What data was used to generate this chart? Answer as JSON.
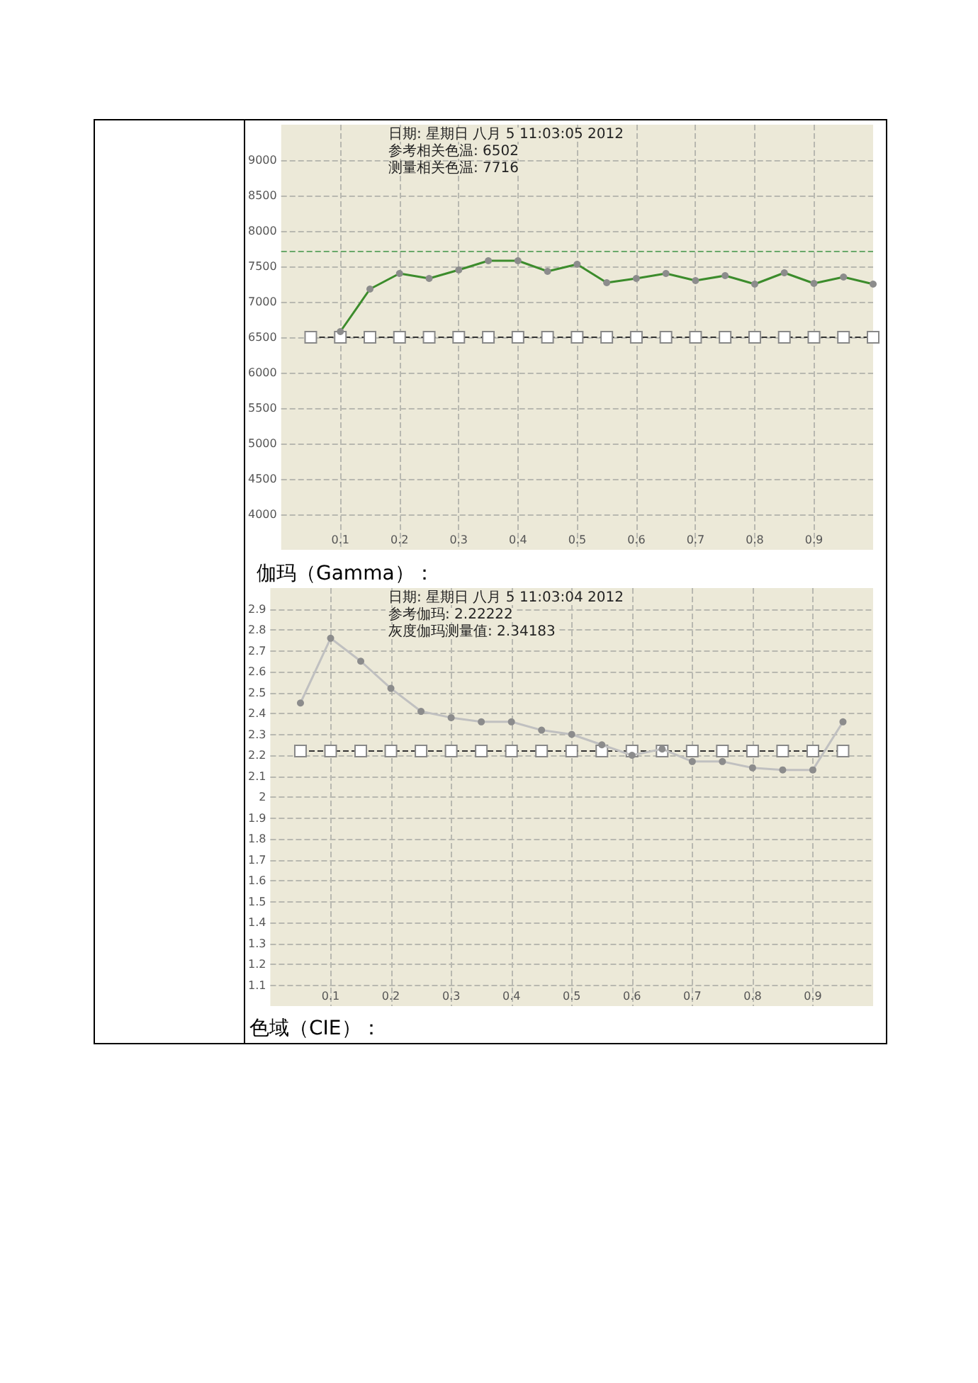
{
  "chart_data": [
    {
      "type": "line",
      "annotations": [
        "日期: 星期日 八月 5 11:03:05 2012",
        "参考相关色温: 6502",
        "测量相关色温: 7716"
      ],
      "xlim": [
        0,
        1
      ],
      "xticks": [
        0.1,
        0.2,
        0.3,
        0.4,
        0.5,
        0.6,
        0.7,
        0.8,
        0.9
      ],
      "ylim": [
        3500,
        9500
      ],
      "yticks": [
        4000,
        4500,
        5000,
        5500,
        6000,
        6500,
        7000,
        7500,
        8000,
        8500,
        9000
      ],
      "grid": true,
      "marker": "circle",
      "line_style": "solid",
      "ref_lines": [
        {
          "axis": "y",
          "value": 7716,
          "color": "#6aa86a",
          "line_style": "dashed"
        }
      ],
      "series": [
        {
          "color": "#3c8c2c",
          "x": [
            0.1,
            0.15,
            0.2,
            0.25,
            0.3,
            0.35,
            0.4,
            0.45,
            0.5,
            0.55,
            0.6,
            0.65,
            0.7,
            0.75,
            0.8,
            0.85,
            0.9,
            0.95,
            1.0
          ],
          "values": [
            6580,
            7180,
            7400,
            7330,
            7450,
            7580,
            7580,
            7430,
            7530,
            7270,
            7330,
            7400,
            7300,
            7370,
            7250,
            7410,
            7260,
            7350,
            7250
          ]
        },
        {
          "color": "#333333",
          "marker": "square",
          "line_style": "dashed",
          "x": [
            0.05,
            0.1,
            0.15,
            0.2,
            0.25,
            0.3,
            0.35,
            0.4,
            0.45,
            0.5,
            0.55,
            0.6,
            0.65,
            0.7,
            0.75,
            0.8,
            0.85,
            0.9,
            0.95,
            1.0
          ],
          "values": [
            6500,
            6500,
            6500,
            6500,
            6500,
            6500,
            6500,
            6500,
            6500,
            6500,
            6500,
            6500,
            6500,
            6500,
            6500,
            6500,
            6500,
            6500,
            6500,
            6500
          ]
        }
      ]
    },
    {
      "type": "line",
      "title": "伽玛（Gamma）：",
      "subtitle": "色域（CIE）：",
      "annotations": [
        "日期: 星期日 八月 5 11:03:04 2012",
        "参考伽玛: 2.22222",
        "灰度伽玛测量值: 2.34183"
      ],
      "xlim": [
        0,
        1
      ],
      "xticks": [
        0.1,
        0.2,
        0.3,
        0.4,
        0.5,
        0.6,
        0.7,
        0.8,
        0.9
      ],
      "ylim": [
        1,
        3
      ],
      "yticks": [
        1.1,
        1.2,
        1.3,
        1.4,
        1.5,
        1.6,
        1.7,
        1.8,
        1.9,
        2,
        2.1,
        2.2,
        2.3,
        2.4,
        2.5,
        2.6,
        2.7,
        2.8,
        2.9
      ],
      "grid": true,
      "marker": "circle",
      "line_style": "solid",
      "series": [
        {
          "color": "#c0c0c0",
          "x": [
            0.05,
            0.1,
            0.15,
            0.2,
            0.25,
            0.3,
            0.35,
            0.4,
            0.45,
            0.5,
            0.55,
            0.6,
            0.65,
            0.7,
            0.75,
            0.8,
            0.85,
            0.9,
            0.95
          ],
          "values": [
            2.45,
            2.76,
            2.65,
            2.52,
            2.41,
            2.38,
            2.36,
            2.36,
            2.32,
            2.3,
            2.25,
            2.2,
            2.23,
            2.17,
            2.17,
            2.14,
            2.13,
            2.13,
            2.36
          ]
        },
        {
          "color": "#333333",
          "marker": "square",
          "line_style": "dashed",
          "x": [
            0.05,
            0.1,
            0.15,
            0.2,
            0.25,
            0.3,
            0.35,
            0.4,
            0.45,
            0.5,
            0.55,
            0.6,
            0.65,
            0.7,
            0.75,
            0.8,
            0.85,
            0.9,
            0.95
          ],
          "values": [
            2.22,
            2.22,
            2.22,
            2.22,
            2.22,
            2.22,
            2.22,
            2.22,
            2.22,
            2.22,
            2.22,
            2.22,
            2.22,
            2.22,
            2.22,
            2.22,
            2.22,
            2.22,
            2.22
          ]
        }
      ]
    }
  ]
}
